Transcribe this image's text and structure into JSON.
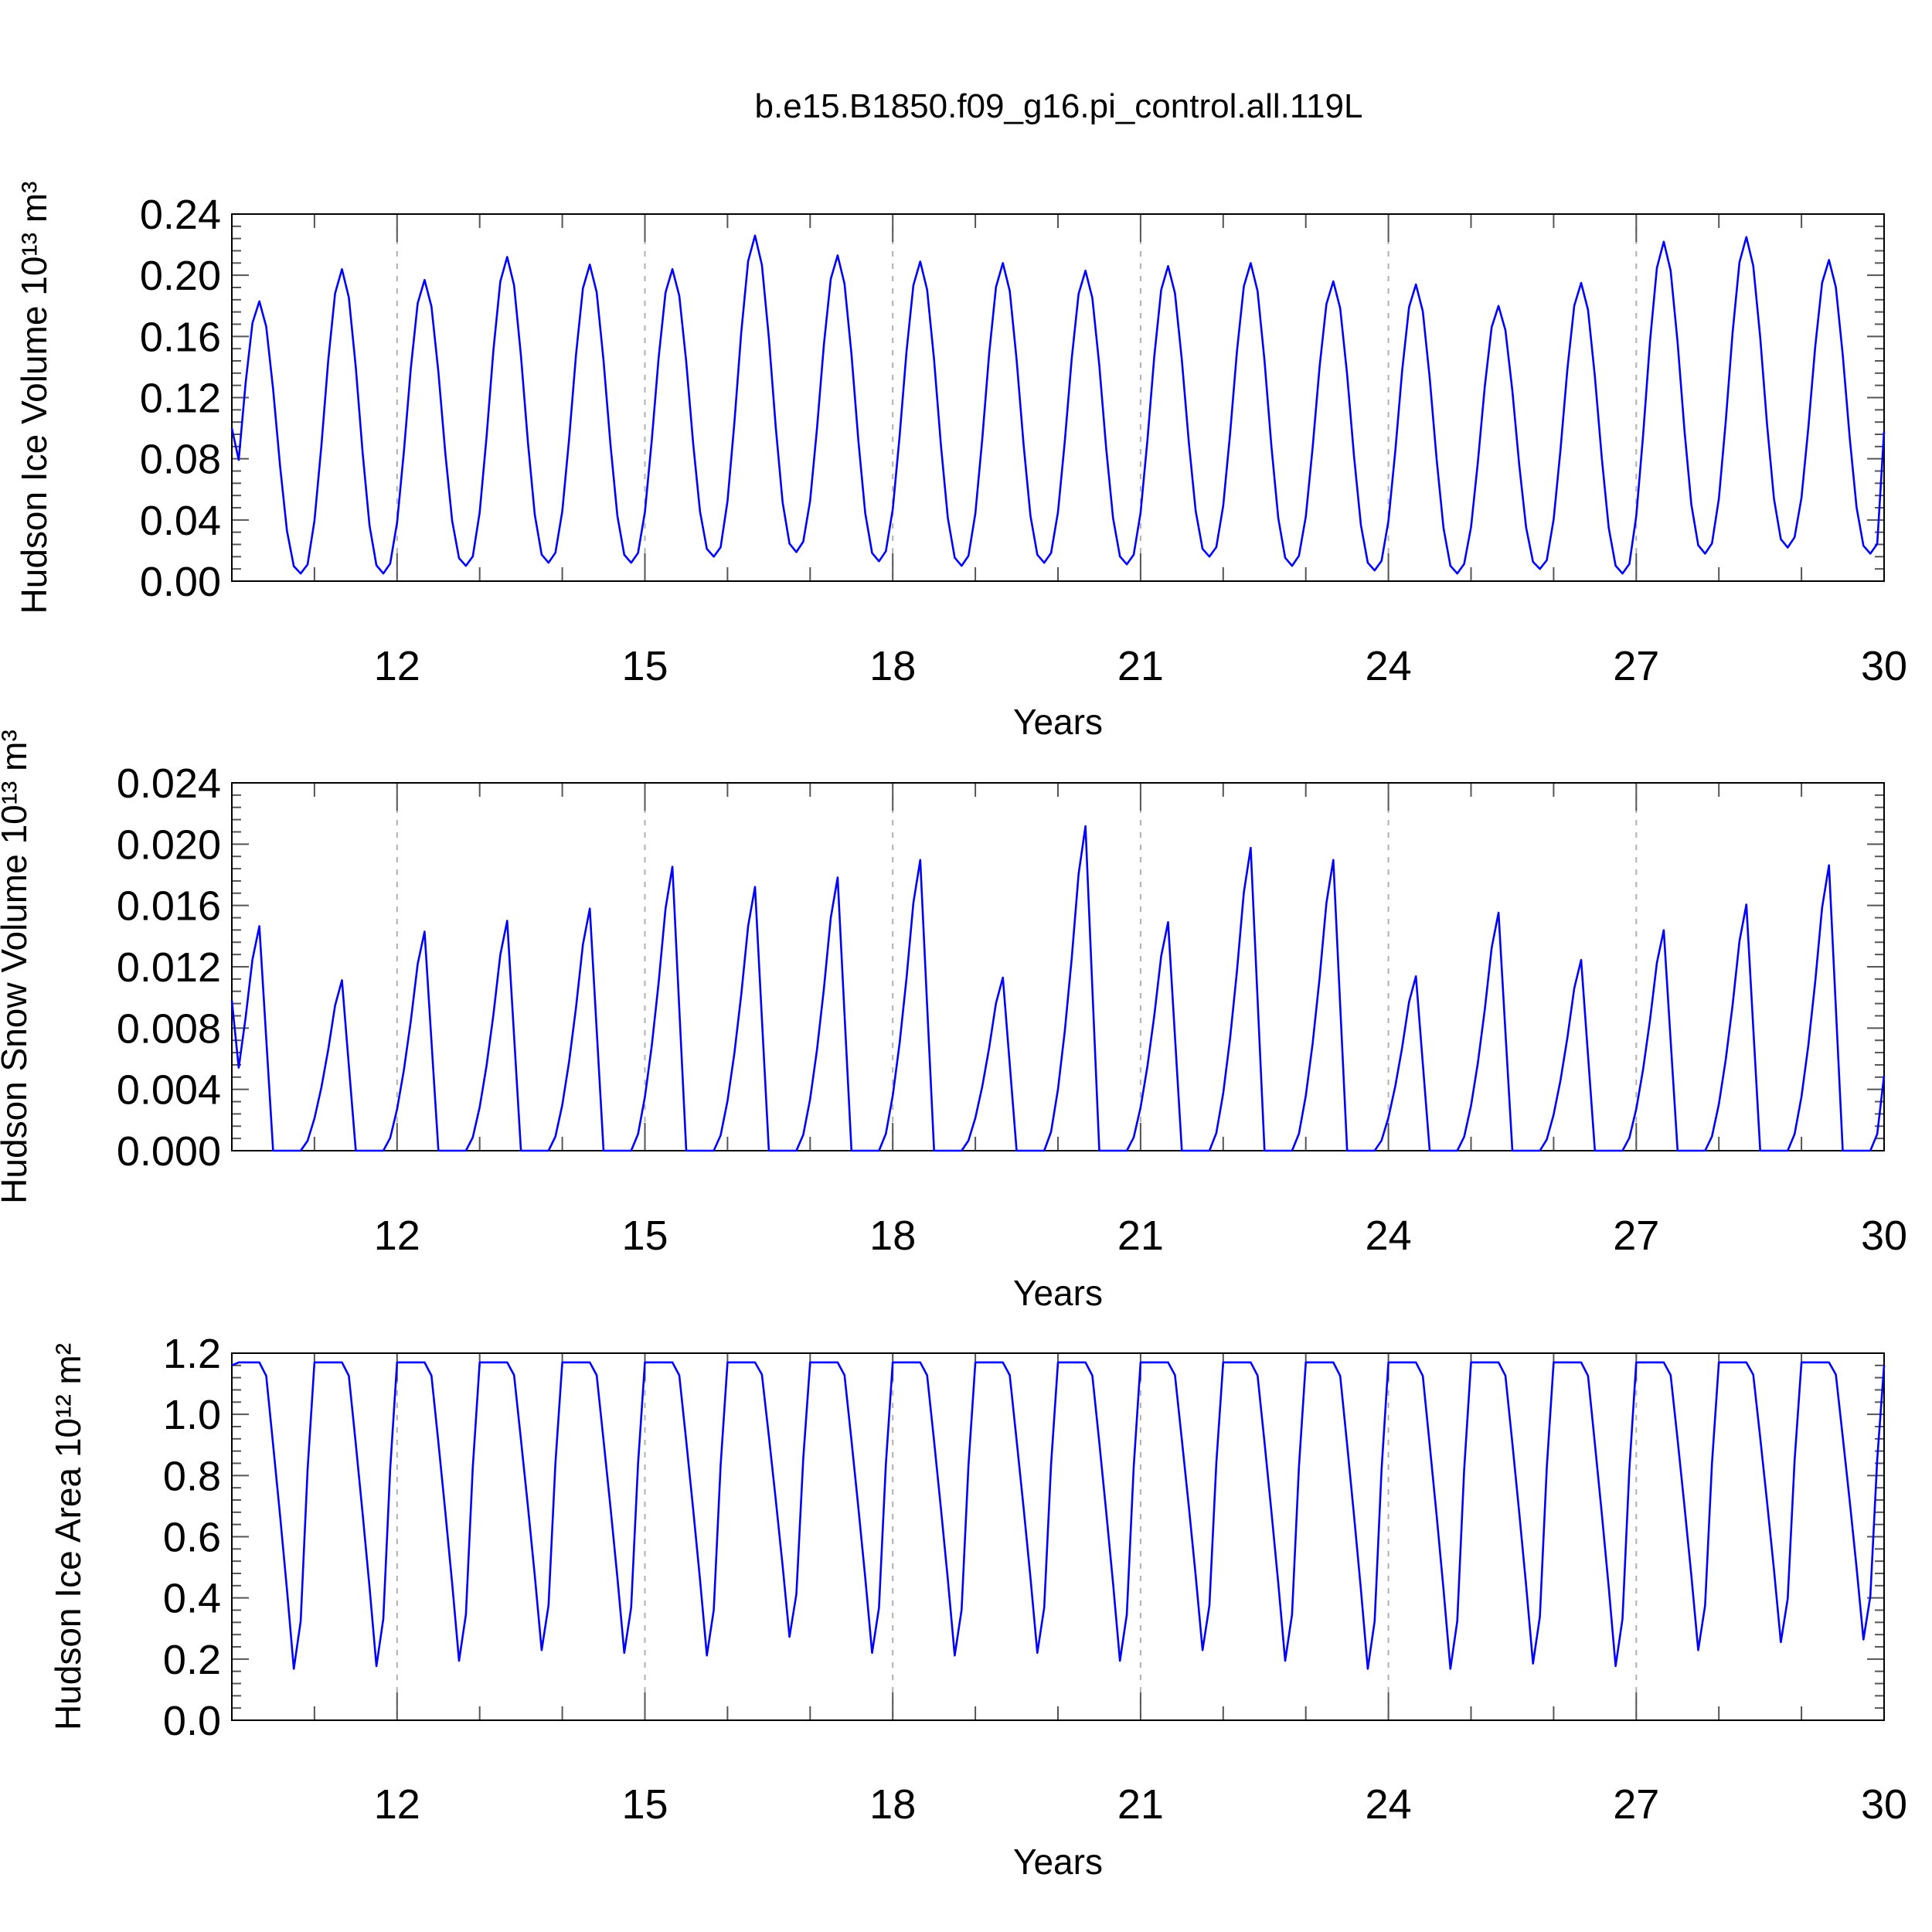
{
  "figure": {
    "title": "b.e15.B1850.f09_g16.pi_control.all.119L"
  },
  "chart_data": [
    {
      "type": "line",
      "ylabel": "Hudson Ice Volume 10¹³ m³",
      "xlabel": "Years",
      "xlim": [
        10,
        30
      ],
      "ylim": [
        0.0,
        0.24
      ],
      "xticks": [
        "12",
        "15",
        "18",
        "21",
        "24",
        "27",
        "30"
      ],
      "yticks": [
        "0.00",
        "0.04",
        "0.08",
        "0.12",
        "0.16",
        "0.20",
        "0.24"
      ],
      "line_color": "#0000ff",
      "vertical_dashed_grid": true,
      "cycle": {
        "min_month": 0.75,
        "max_month": 0.33
      },
      "series": [
        {
          "x_start": 10.0,
          "x_end": 30.0,
          "annual_max": [
            0.183,
            0.204,
            0.197,
            0.212,
            0.207,
            0.204,
            0.226,
            0.213,
            0.209,
            0.208,
            0.203,
            0.206,
            0.208,
            0.196,
            0.194,
            0.18,
            0.195,
            0.222,
            0.225,
            0.21
          ],
          "annual_min": [
            0.005,
            0.005,
            0.01,
            0.012,
            0.012,
            0.016,
            0.019,
            0.013,
            0.01,
            0.012,
            0.011,
            0.016,
            0.01,
            0.007,
            0.005,
            0.008,
            0.005,
            0.018,
            0.022,
            0.018
          ],
          "start_value": 0.1,
          "end_value": 0.098
        }
      ]
    },
    {
      "type": "line",
      "ylabel": "Hudson Snow Volume 10¹³ m³",
      "xlabel": "Years",
      "xlim": [
        10,
        30
      ],
      "ylim": [
        0.0,
        0.024
      ],
      "xticks": [
        "12",
        "15",
        "18",
        "21",
        "24",
        "27",
        "30"
      ],
      "yticks": [
        "0.000",
        "0.004",
        "0.008",
        "0.012",
        "0.016",
        "0.020",
        "0.024"
      ],
      "line_color": "#0000ff",
      "vertical_dashed_grid": true,
      "cycle": {
        "zero_from": 0.55,
        "zero_to": 0.85,
        "peak_month": 0.33
      },
      "series": [
        {
          "x_start": 10.0,
          "x_end": 30.0,
          "annual_max": [
            0.0166,
            0.0126,
            0.0162,
            0.017,
            0.0179,
            0.021,
            0.0195,
            0.0202,
            0.0215,
            0.0128,
            0.024,
            0.0169,
            0.0224,
            0.0215,
            0.0129,
            0.0176,
            0.0141,
            0.0163,
            0.0182,
            0.0211
          ],
          "start_value": 0.0098,
          "end_value": 0.0049
        }
      ]
    },
    {
      "type": "line",
      "ylabel": "Hudson Ice Area 10¹² m²",
      "xlabel": "Years",
      "xlim": [
        10,
        30
      ],
      "ylim": [
        0.0,
        1.2
      ],
      "xticks": [
        "12",
        "15",
        "18",
        "21",
        "24",
        "27",
        "30"
      ],
      "yticks": [
        "0.0",
        "0.2",
        "0.4",
        "0.6",
        "0.8",
        "1.0",
        "1.2"
      ],
      "line_color": "#0000ff",
      "vertical_dashed_grid": true,
      "cycle": {
        "plateau": 1.17,
        "min_month": 0.79
      },
      "series": [
        {
          "x_start": 10.0,
          "x_end": 30.0,
          "annual_min": [
            0.02,
            0.03,
            0.05,
            0.09,
            0.08,
            0.07,
            0.14,
            0.08,
            0.07,
            0.08,
            0.05,
            0.09,
            0.05,
            0.02,
            0.02,
            0.04,
            0.03,
            0.09,
            0.12,
            0.13
          ],
          "start_value": 1.16,
          "end_value": 1.16
        }
      ]
    }
  ]
}
